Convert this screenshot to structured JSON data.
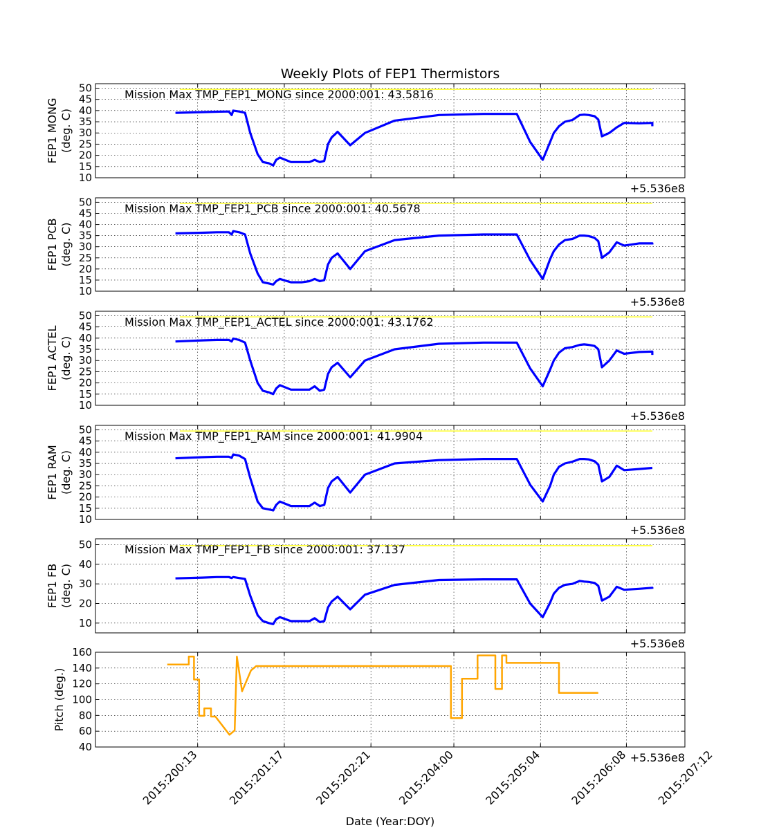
{
  "figure_title": "Weekly Plots of FEP1 Thermistors",
  "x_axis_label": "Date (Year:DOY)",
  "offset_label": "+5.536e8",
  "chart_data": [
    {
      "type": "line",
      "ylabel": [
        "FEP1 MONG",
        "(deg. C)"
      ],
      "annotation": "Mission Max TMP_FEP1_MONG since 2000:001: 43.5816",
      "ylim": [
        10,
        52
      ],
      "yticks": [
        10,
        15,
        20,
        25,
        30,
        35,
        40,
        45,
        50
      ],
      "grid": true,
      "limit_line": {
        "color": "#ffff00",
        "y": 49.5,
        "x": [
          200.3,
          206.68
        ]
      },
      "series": [
        {
          "color": "#0000ff",
          "x": [
            200.24,
            200.6,
            200.8,
            200.96,
            201.0,
            201.02,
            201.1,
            201.18,
            201.25,
            201.35,
            201.42,
            201.5,
            201.56,
            201.6,
            201.65,
            201.8,
            201.86,
            201.95,
            202.05,
            202.12,
            202.19,
            202.25,
            202.3,
            202.35,
            202.43,
            202.6,
            202.8,
            203.2,
            203.8,
            204.4,
            204.7,
            204.85,
            205.03,
            205.2,
            205.3,
            205.35,
            205.42,
            205.5,
            205.6,
            205.7,
            205.76,
            205.82,
            205.9,
            205.95,
            206.0,
            206.1,
            206.2,
            206.3,
            206.5,
            206.68,
            206.68
          ],
          "y": [
            39.0,
            39.3,
            39.5,
            39.6,
            38.0,
            40.0,
            39.6,
            39.0,
            30.0,
            20.5,
            17.0,
            16.5,
            15.5,
            18.0,
            19.0,
            17.0,
            17.0,
            17.0,
            17.0,
            18.0,
            17.0,
            17.5,
            25.0,
            28.0,
            30.5,
            24.5,
            30.0,
            35.5,
            38.0,
            38.5,
            38.5,
            38.5,
            26.0,
            18.0,
            26.0,
            30.0,
            33.0,
            35.0,
            35.8,
            38.0,
            38.2,
            38.0,
            37.5,
            36.0,
            28.5,
            30.0,
            32.5,
            34.5,
            34.3,
            34.5,
            33.0
          ]
        }
      ]
    },
    {
      "type": "line",
      "ylabel": [
        "FEP1 PCB",
        "(deg. C)"
      ],
      "annotation": "Mission Max TMP_FEP1_PCB since 2000:001: 40.5678",
      "ylim": [
        10,
        52
      ],
      "yticks": [
        10,
        15,
        20,
        25,
        30,
        35,
        40,
        45,
        50
      ],
      "grid": true,
      "limit_line": {
        "color": "#ffff00",
        "y": 49.5,
        "x": [
          200.3,
          206.68
        ]
      },
      "series": [
        {
          "color": "#0000ff",
          "x": [
            200.24,
            200.6,
            200.8,
            200.96,
            201.0,
            201.02,
            201.1,
            201.18,
            201.25,
            201.35,
            201.42,
            201.5,
            201.56,
            201.6,
            201.65,
            201.8,
            201.86,
            201.95,
            202.05,
            202.12,
            202.19,
            202.25,
            202.3,
            202.35,
            202.43,
            202.6,
            202.8,
            203.2,
            203.8,
            204.4,
            204.7,
            204.85,
            205.03,
            205.2,
            205.3,
            205.35,
            205.42,
            205.5,
            205.6,
            205.7,
            205.76,
            205.82,
            205.9,
            205.95,
            206.0,
            206.1,
            206.2,
            206.3,
            206.5,
            206.68,
            206.68
          ],
          "y": [
            36.0,
            36.3,
            36.5,
            36.5,
            35.5,
            37.0,
            36.5,
            35.5,
            27.0,
            18.0,
            14.0,
            13.5,
            13.0,
            14.5,
            15.5,
            14.0,
            14.0,
            14.0,
            14.5,
            15.5,
            14.5,
            15.0,
            22.0,
            25.0,
            27.0,
            20.0,
            28.0,
            33.0,
            35.0,
            35.5,
            35.5,
            35.5,
            24.0,
            15.5,
            24.5,
            28.0,
            31.0,
            33.0,
            33.5,
            35.0,
            35.0,
            34.8,
            34.0,
            32.5,
            25.0,
            27.5,
            32.0,
            30.5,
            31.5,
            31.5,
            31.0
          ]
        }
      ]
    },
    {
      "type": "line",
      "ylabel": [
        "FEP1 ACTEL",
        "(deg. C)"
      ],
      "annotation": "Mission Max TMP_FEP1_ACTEL since 2000:001: 43.1762",
      "ylim": [
        10,
        52
      ],
      "yticks": [
        10,
        15,
        20,
        25,
        30,
        35,
        40,
        45,
        50
      ],
      "grid": true,
      "limit_line": {
        "color": "#ffff00",
        "y": 49.5,
        "x": [
          200.3,
          206.68
        ]
      },
      "series": [
        {
          "color": "#0000ff",
          "x": [
            200.24,
            200.6,
            200.8,
            200.96,
            201.0,
            201.02,
            201.1,
            201.18,
            201.25,
            201.35,
            201.42,
            201.5,
            201.56,
            201.6,
            201.65,
            201.8,
            201.86,
            201.95,
            202.05,
            202.12,
            202.19,
            202.25,
            202.3,
            202.35,
            202.43,
            202.6,
            202.8,
            203.2,
            203.8,
            204.4,
            204.7,
            204.85,
            205.03,
            205.2,
            205.3,
            205.35,
            205.42,
            205.5,
            205.6,
            205.7,
            205.76,
            205.82,
            205.9,
            205.95,
            206.0,
            206.1,
            206.2,
            206.3,
            206.5,
            206.68,
            206.68
          ],
          "y": [
            38.5,
            39.0,
            39.2,
            39.2,
            38.5,
            39.8,
            39.2,
            38.0,
            30.0,
            20.0,
            16.5,
            15.8,
            15.0,
            17.5,
            19.0,
            17.0,
            17.0,
            17.0,
            17.0,
            18.5,
            16.5,
            17.0,
            24.0,
            27.0,
            29.0,
            22.5,
            30.0,
            35.0,
            37.5,
            38.0,
            38.0,
            38.0,
            26.5,
            18.5,
            26.0,
            30.0,
            33.5,
            35.5,
            36.0,
            37.0,
            37.2,
            37.0,
            36.5,
            35.0,
            27.0,
            30.0,
            34.5,
            33.0,
            33.8,
            34.0,
            32.5
          ]
        }
      ]
    },
    {
      "type": "line",
      "ylabel": [
        "FEP1 RAM",
        "(deg. C)"
      ],
      "annotation": "Mission Max TMP_FEP1_RAM since 2000:001: 41.9904",
      "ylim": [
        10,
        52
      ],
      "yticks": [
        10,
        15,
        20,
        25,
        30,
        35,
        40,
        45,
        50
      ],
      "grid": true,
      "limit_line": {
        "color": "#ffff00",
        "y": 49.5,
        "x": [
          200.3,
          206.68
        ]
      },
      "series": [
        {
          "color": "#0000ff",
          "x": [
            200.24,
            200.6,
            200.8,
            200.96,
            201.0,
            201.02,
            201.1,
            201.18,
            201.25,
            201.35,
            201.42,
            201.5,
            201.56,
            201.6,
            201.65,
            201.8,
            201.86,
            201.95,
            202.05,
            202.12,
            202.19,
            202.25,
            202.3,
            202.35,
            202.43,
            202.6,
            202.8,
            203.2,
            203.8,
            204.4,
            204.7,
            204.85,
            205.03,
            205.2,
            205.3,
            205.35,
            205.42,
            205.5,
            205.6,
            205.7,
            205.76,
            205.82,
            205.9,
            205.95,
            206.0,
            206.1,
            206.2,
            206.3,
            206.5,
            206.68,
            206.68
          ],
          "y": [
            37.3,
            37.8,
            38.0,
            38.0,
            37.5,
            39.0,
            38.5,
            37.0,
            28.5,
            18.0,
            15.0,
            14.5,
            14.0,
            16.5,
            18.0,
            16.0,
            16.0,
            16.0,
            16.0,
            17.5,
            16.0,
            16.5,
            24.0,
            27.0,
            29.0,
            22.0,
            30.0,
            35.0,
            36.5,
            37.0,
            37.0,
            37.0,
            25.5,
            18.0,
            25.0,
            30.0,
            33.5,
            35.0,
            35.8,
            37.0,
            37.0,
            36.8,
            36.0,
            34.5,
            27.0,
            29.0,
            34.0,
            32.0,
            32.5,
            33.0,
            33.0
          ]
        }
      ]
    },
    {
      "type": "line",
      "ylabel": [
        "FEP1 FB",
        "(deg. C)"
      ],
      "annotation": "Mission Max TMP_FEP1_FB since 2000:001: 37.137",
      "ylim": [
        5,
        53
      ],
      "yticks": [
        10,
        20,
        30,
        40,
        50
      ],
      "grid": true,
      "limit_line": {
        "color": "#ffff00",
        "y": 49.5,
        "x": [
          200.3,
          206.68
        ]
      },
      "series": [
        {
          "color": "#0000ff",
          "x": [
            200.24,
            200.6,
            200.8,
            200.96,
            201.0,
            201.02,
            201.1,
            201.18,
            201.25,
            201.35,
            201.42,
            201.5,
            201.56,
            201.6,
            201.65,
            201.8,
            201.86,
            201.95,
            202.05,
            202.12,
            202.19,
            202.25,
            202.3,
            202.35,
            202.43,
            202.6,
            202.8,
            203.2,
            203.8,
            204.4,
            204.7,
            204.85,
            205.03,
            205.2,
            205.3,
            205.35,
            205.42,
            205.5,
            205.6,
            205.7,
            205.76,
            205.82,
            205.9,
            205.95,
            206.0,
            206.1,
            206.2,
            206.3,
            206.5,
            206.68,
            206.68
          ],
          "y": [
            32.8,
            33.2,
            33.5,
            33.5,
            33.0,
            33.5,
            33.0,
            32.5,
            24.0,
            14.0,
            11.0,
            10.0,
            9.5,
            12.0,
            13.0,
            11.0,
            11.0,
            11.0,
            11.0,
            12.5,
            10.5,
            11.0,
            18.0,
            21.0,
            23.5,
            17.0,
            24.5,
            29.5,
            32.0,
            32.3,
            32.3,
            32.3,
            20.0,
            13.0,
            20.5,
            25.0,
            28.0,
            29.5,
            30.0,
            31.5,
            31.2,
            31.0,
            30.5,
            29.0,
            21.5,
            23.5,
            28.5,
            27.0,
            27.5,
            28.0,
            27.5
          ]
        }
      ]
    },
    {
      "type": "line",
      "ylabel": [
        "Pitch (deg.)"
      ],
      "ylim": [
        40,
        160
      ],
      "yticks": [
        40,
        60,
        80,
        100,
        120,
        140,
        160
      ],
      "grid": true,
      "series": [
        {
          "color": "#ffa500",
          "step": true,
          "x": [
            200.13,
            200.42,
            200.42,
            200.49,
            200.49,
            200.56,
            200.56,
            200.63,
            200.63,
            200.72,
            200.72,
            200.78,
            200.78,
            200.97,
            200.97,
            201.04,
            201.04,
            201.07,
            201.07,
            201.14,
            201.14,
            201.26,
            201.26,
            201.33,
            201.33,
            201.43,
            201.43,
            201.55,
            201.55,
            201.63,
            201.63,
            202.0,
            202.0,
            203.96,
            203.96,
            204.11,
            204.11,
            204.32,
            204.32,
            204.56,
            204.56,
            204.65,
            204.65,
            204.71,
            204.71,
            204.87,
            204.87,
            205.42,
            205.42,
            205.95
          ],
          "y": [
            144.5,
            144.5,
            154.5,
            154.5,
            125.5,
            125.5,
            79.5,
            79.5,
            89,
            89,
            78.5,
            78.5,
            78.5,
            55.5,
            55.5,
            61,
            61,
            154.5,
            154.5,
            110.5,
            110.5,
            137,
            137,
            142.5,
            142.5,
            142.5,
            142.5,
            142.5,
            142.5,
            142.5,
            142.5,
            142.5,
            142.5,
            142.5,
            76.5,
            76.5,
            126.5,
            126.5,
            156,
            156,
            113.5,
            113.5,
            156,
            156,
            146.5,
            146.5,
            146.5,
            146.5,
            108.5,
            108.5
          ]
        }
      ]
    }
  ],
  "x_axis": {
    "xlim": [
      199.16,
      207.12
    ],
    "ticks": [
      200.54,
      201.71,
      202.88,
      204.0,
      205.17,
      206.33,
      207.5
    ],
    "tick_labels": [
      "2015:200:13",
      "2015:201:17",
      "2015:202:21",
      "2015:204:00",
      "2015:205:04",
      "2015:206:08",
      "2015:207:12"
    ]
  }
}
